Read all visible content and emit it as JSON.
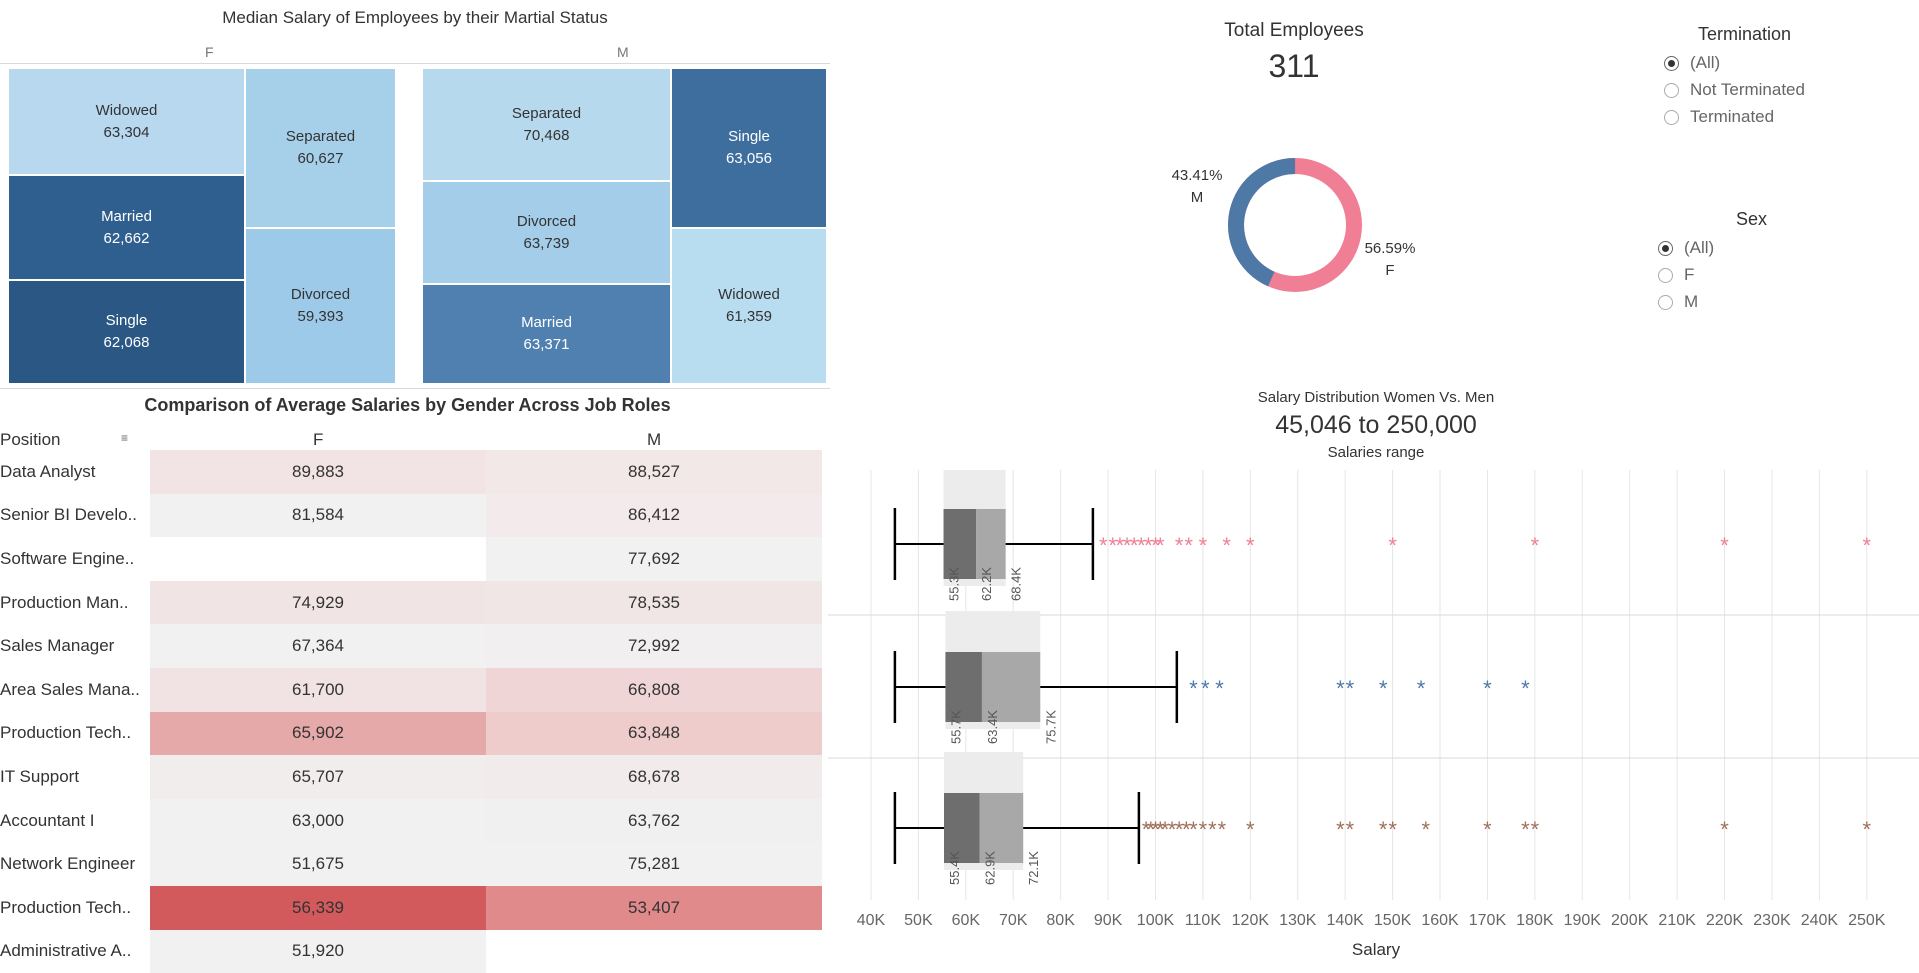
{
  "treemap": {
    "title": "Median Salary of Employees by their Martial Status",
    "female_label": "F",
    "male_label": "M",
    "female": [
      {
        "status": "Widowed",
        "value": "63,304",
        "color": "#b7d8ee",
        "dark": false
      },
      {
        "status": "Married",
        "value": "62,662",
        "color": "#2f5f8f",
        "dark": true
      },
      {
        "status": "Single",
        "value": "62,068",
        "color": "#2a5783",
        "dark": true
      },
      {
        "status": "Separated",
        "value": "60,627",
        "color": "#a6cfe9",
        "dark": false
      },
      {
        "status": "Divorced",
        "value": "59,393",
        "color": "#9ecae9",
        "dark": false
      }
    ],
    "male": [
      {
        "status": "Separated",
        "value": "70,468",
        "color": "#b7d9ee",
        "dark": false
      },
      {
        "status": "Divorced",
        "value": "63,739",
        "color": "#a3cde8",
        "dark": false
      },
      {
        "status": "Married",
        "value": "63,371",
        "color": "#5080b0",
        "dark": true
      },
      {
        "status": "Single",
        "value": "63,056",
        "color": "#3e6e9e",
        "dark": true
      },
      {
        "status": "Widowed",
        "value": "61,359",
        "color": "#b8dcf0",
        "dark": false
      }
    ]
  },
  "kpi": {
    "title": "Total Employees",
    "value": "311"
  },
  "donut": {
    "male_pct": "43.41%",
    "male_label": "M",
    "female_pct": "56.59%",
    "female_label": "F",
    "male_fraction": 0.4341,
    "male_color": "#4e79a7",
    "female_color": "#f07f95"
  },
  "filters": {
    "termination": {
      "title": "Termination",
      "options": [
        "(All)",
        "Not Terminated",
        "Terminated"
      ],
      "selected": "(All)"
    },
    "sex": {
      "title": "Sex",
      "options": [
        "(All)",
        "F",
        "M"
      ],
      "selected": "(All)"
    }
  },
  "table": {
    "title": "Comparison of Average Salaries by Gender Across Job Roles",
    "col_position": "Position",
    "col_f": "F",
    "col_m": "M",
    "rows": [
      {
        "position": "Data Analyst",
        "f": "89,883",
        "m": "88,527",
        "f_color": "#f2e4e4",
        "m_color": "#f3e8e8"
      },
      {
        "position": "Senior BI Develo..",
        "f": "81,584",
        "m": "86,412",
        "f_color": "#f1f1f1",
        "m_color": "#f3ebeb"
      },
      {
        "position": "Software Engine..",
        "f": "",
        "m": "77,692",
        "f_color": "#ffffff",
        "m_color": "#f1f1f1"
      },
      {
        "position": "Production Man..",
        "f": "74,929",
        "m": "78,535",
        "f_color": "#f1e4e4",
        "m_color": "#f1e6e6"
      },
      {
        "position": "Sales Manager",
        "f": "67,364",
        "m": "72,992",
        "f_color": "#f1f1f1",
        "m_color": "#f1efef"
      },
      {
        "position": "Area Sales Mana..",
        "f": "61,700",
        "m": "66,808",
        "f_color": "#f1e3e3",
        "m_color": "#efd5d5"
      },
      {
        "position": "Production Tech..",
        "f": "65,902",
        "m": "63,848",
        "f_color": "#e6a9a9",
        "m_color": "#efcccc"
      },
      {
        "position": "IT Support",
        "f": "65,707",
        "m": "68,678",
        "f_color": "#f1eded",
        "m_color": "#f1ebeb"
      },
      {
        "position": "Accountant I",
        "f": "63,000",
        "m": "63,762",
        "f_color": "#f1f1f1",
        "m_color": "#f1f0f0"
      },
      {
        "position": "Network Engineer",
        "f": "51,675",
        "m": "75,281",
        "f_color": "#f1f1f1",
        "m_color": "#f1f1f1"
      },
      {
        "position": "Production Tech..",
        "f": "56,339",
        "m": "53,407",
        "f_color": "#d25a5c",
        "m_color": "#e08a8c"
      },
      {
        "position": "Administrative A..",
        "f": "51,920",
        "m": "",
        "f_color": "#f1f1f1",
        "m_color": "#ffffff"
      }
    ]
  },
  "boxplot": {
    "title": "Salary Distribution Women Vs. Men",
    "range": "45,046 to 250,000",
    "subtitle": "Salaries range",
    "xlabel": "Salary"
  },
  "chart_data": {
    "type": "box",
    "title": "Salary Distribution Women Vs. Men",
    "xlabel": "Salary",
    "xlim": [
      36000,
      257000
    ],
    "ticks": [
      40000,
      50000,
      60000,
      70000,
      80000,
      90000,
      100000,
      110000,
      120000,
      130000,
      140000,
      150000,
      160000,
      170000,
      180000,
      190000,
      200000,
      210000,
      220000,
      230000,
      240000,
      250000
    ],
    "tick_labels": [
      "40K",
      "50K",
      "60K",
      "70K",
      "80K",
      "90K",
      "100K",
      "110K",
      "120K",
      "130K",
      "140K",
      "150K",
      "160K",
      "170K",
      "180K",
      "190K",
      "200K",
      "210K",
      "220K",
      "230K",
      "240K",
      "250K"
    ],
    "series": [
      {
        "color": "#f07f95",
        "whisker_low": 45046,
        "q1": 55300,
        "median": 62200,
        "q3": 68400,
        "whisker_high": 86800,
        "q1_label": "55.3K",
        "median_label": "62.2K",
        "q3_label": "68.4K",
        "outliers": [
          89000,
          91000,
          92500,
          94000,
          95500,
          97000,
          98500,
          100000,
          101000,
          105000,
          107000,
          110000,
          115000,
          120000,
          150000,
          180000,
          220000,
          250000
        ]
      },
      {
        "color": "#4e79a7",
        "whisker_low": 45046,
        "q1": 55700,
        "median": 63400,
        "q3": 75700,
        "whisker_high": 104500,
        "q1_label": "55.7K",
        "median_label": "63.4K",
        "q3_label": "75.7K",
        "outliers": [
          108000,
          110500,
          113500,
          139000,
          141000,
          148000,
          156000,
          170000,
          178000
        ]
      },
      {
        "color": "#a0705a",
        "whisker_low": 45046,
        "q1": 55400,
        "median": 62900,
        "q3": 72100,
        "whisker_high": 96500,
        "q1_label": "55.4K",
        "median_label": "62.9K",
        "q3_label": "72.1K",
        "outliers": [
          98000,
          99000,
          100000,
          101000,
          102000,
          103500,
          105000,
          106500,
          108000,
          110000,
          112000,
          114000,
          120000,
          139000,
          141000,
          148000,
          150000,
          157000,
          170000,
          178000,
          180000,
          220000,
          250000
        ]
      }
    ]
  }
}
